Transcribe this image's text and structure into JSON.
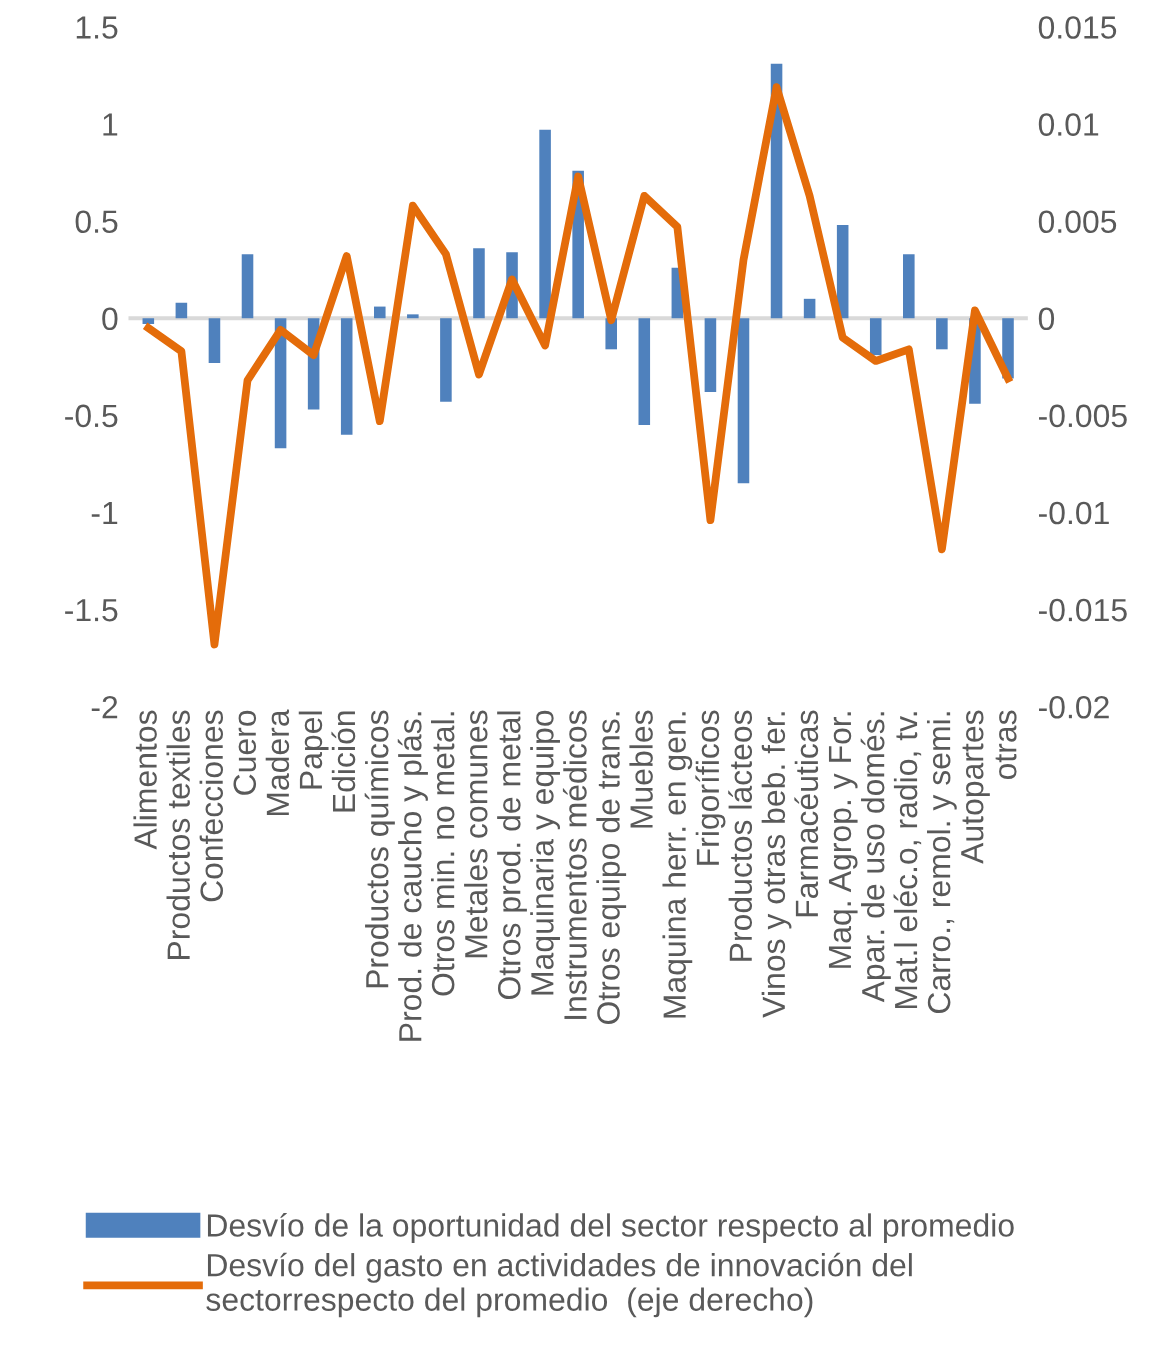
{
  "chart_data": {
    "type": "bar",
    "categories": [
      "Alimentos",
      "Productos textiles",
      "Confecciones",
      "Cuero",
      "Madera",
      "Papel",
      "Edición",
      "Productos químicos",
      "Prod. de caucho y plás.",
      "Otros min. no metal.",
      "Metales comunes",
      "Otros prod. de metal",
      "Maquinaria y equipo",
      "Instrumentos médicos",
      "Otros equipo de trans.",
      "Muebles",
      "Maquina herr. en gen.",
      "Frigoríficos",
      "Productos lácteos",
      "Vinos y otras beb. fer.",
      "Farmacéuticas",
      "Maq. Agrop. y For.",
      "Apar. de uso domés.",
      "Mat.l eléc.o, radio, tv.",
      "Carro., remol. y semi.",
      "Autopartes",
      "otras"
    ],
    "series": [
      {
        "name": "Desvío de la oportunidad del sector respecto al promedio",
        "color": "#4f81bd",
        "values": [
          -0.03,
          0.08,
          -0.23,
          0.33,
          -0.67,
          -0.47,
          -0.6,
          0.06,
          0.02,
          -0.43,
          0.36,
          0.34,
          0.97,
          0.76,
          -0.16,
          -0.55,
          0.26,
          -0.38,
          -0.85,
          1.31,
          0.1,
          0.48,
          -0.19,
          0.33,
          -0.16,
          -0.44,
          -0.31
        ]
      },
      {
        "name": "Desvío del gasto en actividades de innovación del sectorrespecto del promedio  (eje derecho)",
        "type": "line",
        "axis": "y2",
        "color": "#e46c0a",
        "values": [
          -0.0005,
          -0.0017,
          -0.0168,
          -0.0032,
          -0.0006,
          -0.0019,
          0.0032,
          -0.0053,
          0.0058,
          0.0033,
          -0.0029,
          0.002,
          -0.0014,
          0.0073,
          -0.0001,
          0.0063,
          0.0047,
          -0.0104,
          0.003,
          0.0119,
          0.0063,
          -0.001,
          -0.0022,
          -0.0016,
          -0.0119,
          0.0004,
          -0.0031
        ]
      }
    ],
    "ylim": [
      -2,
      1.5
    ],
    "yticks": [
      -2,
      -1.5,
      -1,
      -0.5,
      0,
      0.5,
      1,
      1.5
    ],
    "y2lim": [
      -0.02,
      0.015
    ],
    "y2ticks": [
      -0.02,
      -0.015,
      -0.01,
      -0.005,
      0,
      0.005,
      0.01,
      0.015
    ],
    "ref_lines": [
      {
        "axis": "y",
        "value": 0,
        "color": "#d9d9d9"
      }
    ],
    "grid": false,
    "legend": "bottom",
    "marker": "none",
    "line_style": "solid"
  }
}
